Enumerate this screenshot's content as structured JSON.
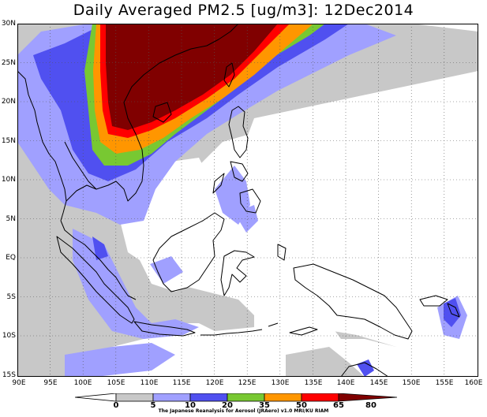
{
  "title": "Daily Averaged PM2.5 [ug/m3]: 12Dec2014",
  "y_axis_labels": [
    "30N",
    "25N",
    "20N",
    "15N",
    "10N",
    "5N",
    "EQ",
    "5S",
    "10S",
    "15S"
  ],
  "x_axis_labels": [
    "90E",
    "95E",
    "100E",
    "105E",
    "110E",
    "115E",
    "120E",
    "125E",
    "130E",
    "135E",
    "140E",
    "145E",
    "150E",
    "155E",
    "160E"
  ],
  "colorbar": {
    "levels": [
      "0",
      "5",
      "10",
      "20",
      "35",
      "50",
      "65",
      "80"
    ],
    "colors": [
      "#ffffff",
      "#c8c8c8",
      "#a0a0ff",
      "#5050f0",
      "#78c832",
      "#ff9600",
      "#ff0000",
      "#800000"
    ]
  },
  "credit": "The Japanese Reanalysis for Aerosol (JRAero) v1.0 MRI/KU RIAM",
  "map": {
    "lon_range": [
      90,
      160
    ],
    "lat_range": [
      -15,
      30
    ],
    "grid": "dotted",
    "projection": "lat-lon"
  }
}
